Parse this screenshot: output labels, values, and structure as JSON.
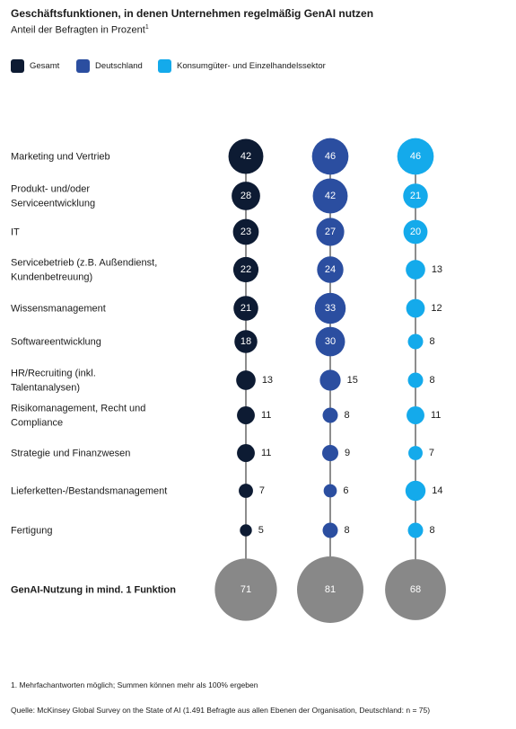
{
  "title": "Geschäftsfunktionen, in denen Unternehmen regelmäßig GenAI nutzen",
  "subtitle": "Anteil der Befragten in Prozent",
  "subtitle_footnote_mark": "1",
  "colors": {
    "gesamt": "#0d1b33",
    "deutschland": "#2b4ea0",
    "konsum": "#14aaeb",
    "total": "#888888"
  },
  "chart_data": {
    "type": "bubble",
    "series": [
      {
        "name": "Gesamt",
        "color": "#0d1b33",
        "values": [
          42,
          28,
          23,
          22,
          21,
          18,
          13,
          11,
          11,
          7,
          5
        ],
        "total": 71
      },
      {
        "name": "Deutschland",
        "color": "#2b4ea0",
        "values": [
          46,
          42,
          27,
          24,
          33,
          30,
          15,
          8,
          9,
          6,
          8
        ],
        "total": 81
      },
      {
        "name": "Konsumgüter- und Einzelhandelssektor",
        "color": "#14aaeb",
        "values": [
          46,
          21,
          20,
          13,
          12,
          8,
          8,
          11,
          7,
          14,
          8
        ],
        "total": 68
      }
    ],
    "categories": [
      [
        "Marketing und Vertrieb"
      ],
      [
        "Produkt- und/oder",
        "Serviceentwicklung"
      ],
      [
        "IT"
      ],
      [
        "Servicebetrieb (z.B. Außendienst,",
        "Kundenbetreuung)"
      ],
      [
        "Wissensmanagement"
      ],
      [
        "Softwareentwicklung"
      ],
      [
        "HR/Recruiting (inkl.",
        "Talentanalysen)"
      ],
      [
        "Risikomanagement, Recht und",
        "Compliance"
      ],
      [
        "Strategie und Finanzwesen"
      ],
      [
        "Lieferketten-/Bestandsmanagement"
      ],
      [
        "Fertigung"
      ]
    ],
    "total_label": "GenAI-Nutzung in mind. 1 Funktion"
  },
  "footnote": "1.  Mehrfachantworten möglich; Summen können mehr als 100% ergeben",
  "source": "Quelle: McKinsey Global Survey on the State of AI (1.491 Befragte aus allen Ebenen der Organisation, Deutschland: n = 75)"
}
